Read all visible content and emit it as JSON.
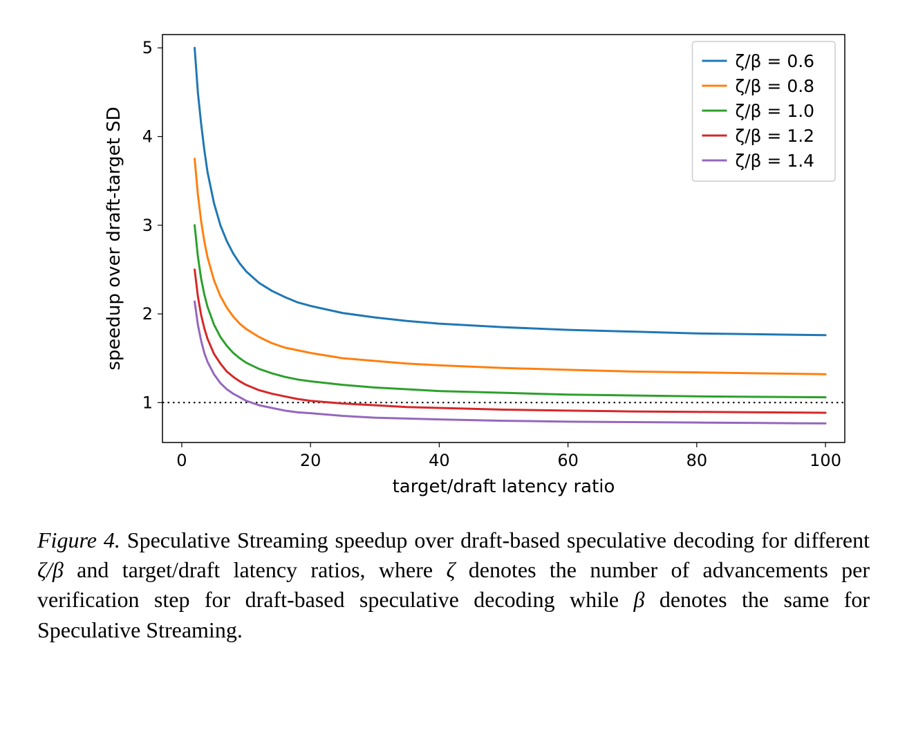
{
  "chart": {
    "type": "line",
    "xlabel": "target/draft latency ratio",
    "ylabel": "speedup over draft-target SD",
    "label_fontsize": 26,
    "tick_fontsize": 24,
    "xlim": [
      -3,
      103
    ],
    "ylim": [
      0.55,
      5.15
    ],
    "xticks": [
      0,
      20,
      40,
      60,
      80,
      100
    ],
    "yticks": [
      1,
      2,
      3,
      4,
      5
    ],
    "background_color": "#ffffff",
    "axis_color": "#000000",
    "tick_color": "#000000",
    "line_width": 3.0,
    "ref_line": {
      "y": 1.0,
      "style": "dotted",
      "color": "#000000",
      "width": 2.0
    },
    "legend": {
      "position": "upper-right",
      "border_color": "#cccccc",
      "bg_color": "#ffffff",
      "fontsize": 25,
      "items": [
        {
          "label": "ζ/β = 0.6",
          "color": "#1f77b4"
        },
        {
          "label": "ζ/β = 0.8",
          "color": "#ff7f0e"
        },
        {
          "label": "ζ/β = 1.0",
          "color": "#2ca02c"
        },
        {
          "label": "ζ/β = 1.2",
          "color": "#d62728"
        },
        {
          "label": "ζ/β = 1.4",
          "color": "#9467bd"
        }
      ]
    },
    "series": [
      {
        "name": "zeta_beta_0.6",
        "color": "#1f77b4",
        "points": [
          [
            2,
            5.0
          ],
          [
            2.5,
            4.5
          ],
          [
            3,
            4.15
          ],
          [
            3.5,
            3.85
          ],
          [
            4,
            3.6
          ],
          [
            5,
            3.25
          ],
          [
            6,
            3.0
          ],
          [
            7,
            2.82
          ],
          [
            8,
            2.68
          ],
          [
            9,
            2.57
          ],
          [
            10,
            2.48
          ],
          [
            12,
            2.35
          ],
          [
            14,
            2.26
          ],
          [
            16,
            2.19
          ],
          [
            18,
            2.13
          ],
          [
            20,
            2.09
          ],
          [
            25,
            2.01
          ],
          [
            30,
            1.96
          ],
          [
            35,
            1.92
          ],
          [
            40,
            1.89
          ],
          [
            50,
            1.85
          ],
          [
            60,
            1.82
          ],
          [
            70,
            1.8
          ],
          [
            80,
            1.78
          ],
          [
            90,
            1.77
          ],
          [
            100,
            1.76
          ]
        ]
      },
      {
        "name": "zeta_beta_0.8",
        "color": "#ff7f0e",
        "points": [
          [
            2,
            3.75
          ],
          [
            2.5,
            3.35
          ],
          [
            3,
            3.05
          ],
          [
            3.5,
            2.82
          ],
          [
            4,
            2.64
          ],
          [
            5,
            2.38
          ],
          [
            6,
            2.2
          ],
          [
            7,
            2.07
          ],
          [
            8,
            1.97
          ],
          [
            9,
            1.89
          ],
          [
            10,
            1.83
          ],
          [
            12,
            1.74
          ],
          [
            14,
            1.67
          ],
          [
            16,
            1.62
          ],
          [
            18,
            1.59
          ],
          [
            20,
            1.56
          ],
          [
            25,
            1.5
          ],
          [
            30,
            1.47
          ],
          [
            35,
            1.44
          ],
          [
            40,
            1.42
          ],
          [
            50,
            1.39
          ],
          [
            60,
            1.37
          ],
          [
            70,
            1.35
          ],
          [
            80,
            1.34
          ],
          [
            90,
            1.33
          ],
          [
            100,
            1.32
          ]
        ]
      },
      {
        "name": "zeta_beta_1.0",
        "color": "#2ca02c",
        "points": [
          [
            2,
            3.0
          ],
          [
            2.5,
            2.65
          ],
          [
            3,
            2.4
          ],
          [
            3.5,
            2.22
          ],
          [
            4,
            2.08
          ],
          [
            5,
            1.88
          ],
          [
            6,
            1.74
          ],
          [
            7,
            1.64
          ],
          [
            8,
            1.56
          ],
          [
            9,
            1.5
          ],
          [
            10,
            1.45
          ],
          [
            12,
            1.38
          ],
          [
            14,
            1.33
          ],
          [
            16,
            1.29
          ],
          [
            18,
            1.26
          ],
          [
            20,
            1.24
          ],
          [
            25,
            1.2
          ],
          [
            30,
            1.17
          ],
          [
            35,
            1.15
          ],
          [
            40,
            1.13
          ],
          [
            50,
            1.11
          ],
          [
            60,
            1.09
          ],
          [
            70,
            1.08
          ],
          [
            80,
            1.07
          ],
          [
            90,
            1.065
          ],
          [
            100,
            1.06
          ]
        ]
      },
      {
        "name": "zeta_beta_1.2",
        "color": "#d62728",
        "points": [
          [
            2,
            2.5
          ],
          [
            2.5,
            2.2
          ],
          [
            3,
            1.99
          ],
          [
            3.5,
            1.84
          ],
          [
            4,
            1.72
          ],
          [
            5,
            1.55
          ],
          [
            6,
            1.44
          ],
          [
            7,
            1.35
          ],
          [
            8,
            1.29
          ],
          [
            9,
            1.24
          ],
          [
            10,
            1.2
          ],
          [
            12,
            1.14
          ],
          [
            14,
            1.1
          ],
          [
            16,
            1.07
          ],
          [
            18,
            1.04
          ],
          [
            20,
            1.02
          ],
          [
            25,
            0.99
          ],
          [
            30,
            0.97
          ],
          [
            35,
            0.95
          ],
          [
            40,
            0.94
          ],
          [
            50,
            0.92
          ],
          [
            60,
            0.91
          ],
          [
            70,
            0.9
          ],
          [
            80,
            0.895
          ],
          [
            90,
            0.89
          ],
          [
            100,
            0.885
          ]
        ]
      },
      {
        "name": "zeta_beta_1.4",
        "color": "#9467bd",
        "points": [
          [
            2,
            2.14
          ],
          [
            2.5,
            1.88
          ],
          [
            3,
            1.7
          ],
          [
            3.5,
            1.56
          ],
          [
            4,
            1.46
          ],
          [
            5,
            1.32
          ],
          [
            6,
            1.22
          ],
          [
            7,
            1.15
          ],
          [
            8,
            1.1
          ],
          [
            9,
            1.06
          ],
          [
            10,
            1.02
          ],
          [
            12,
            0.97
          ],
          [
            14,
            0.94
          ],
          [
            16,
            0.91
          ],
          [
            18,
            0.89
          ],
          [
            20,
            0.88
          ],
          [
            25,
            0.85
          ],
          [
            30,
            0.83
          ],
          [
            35,
            0.82
          ],
          [
            40,
            0.81
          ],
          [
            50,
            0.795
          ],
          [
            60,
            0.785
          ],
          [
            70,
            0.78
          ],
          [
            80,
            0.775
          ],
          [
            90,
            0.77
          ],
          [
            100,
            0.765
          ]
        ]
      }
    ]
  },
  "caption": {
    "fig_label": "Figure 4.",
    "text_1": " Speculative Streaming speedup over draft-based speculative decoding for different ",
    "ratio_sym": "ζ/β",
    "text_2": " and target/draft latency ratios, where ",
    "zeta_sym": "ζ",
    "text_3": " denotes the number of advancements per verification step for draft-based speculative decoding while ",
    "beta_sym": "β",
    "text_4": " denotes the same for Speculative Streaming."
  }
}
